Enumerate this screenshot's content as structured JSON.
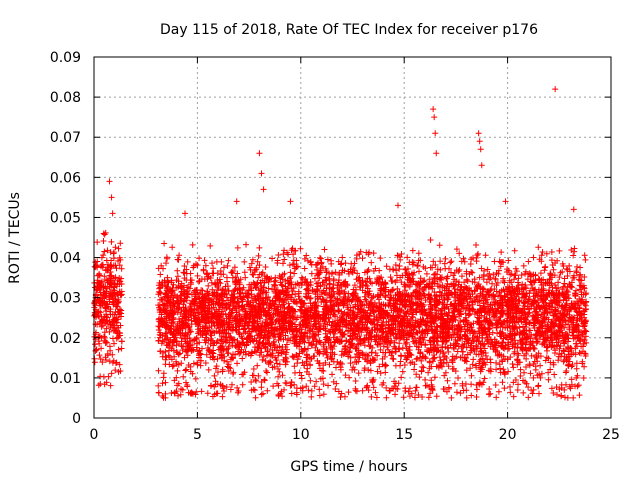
{
  "chart_data": {
    "type": "scatter",
    "title": "Day 115 of 2018, Rate Of TEC Index for receiver p176",
    "xlabel": "GPS time / hours",
    "ylabel": "ROTI / TECUs",
    "xlim": [
      0,
      25
    ],
    "ylim": [
      0,
      0.09
    ],
    "xticks": [
      "0",
      "5",
      "10",
      "15",
      "20",
      "25"
    ],
    "yticks": [
      "0",
      "0.01",
      "0.02",
      "0.03",
      "0.04",
      "0.05",
      "0.06",
      "0.07",
      "0.08",
      "0.09"
    ],
    "grid": true,
    "marker": "+",
    "color": "#ff0000",
    "data_segments": [
      {
        "x_start": 0.0,
        "x_end": 1.35,
        "y_base": 0.008,
        "y_typical_max": 0.045
      },
      {
        "x_start": 3.1,
        "x_end": 23.8,
        "y_base": 0.005,
        "y_typical_max": 0.04
      }
    ],
    "notable_points": [
      {
        "x": 0.75,
        "y": 0.059
      },
      {
        "x": 0.85,
        "y": 0.055
      },
      {
        "x": 0.9,
        "y": 0.051
      },
      {
        "x": 4.4,
        "y": 0.051
      },
      {
        "x": 6.9,
        "y": 0.054
      },
      {
        "x": 8.0,
        "y": 0.066
      },
      {
        "x": 8.1,
        "y": 0.061
      },
      {
        "x": 8.2,
        "y": 0.057
      },
      {
        "x": 9.5,
        "y": 0.054
      },
      {
        "x": 14.7,
        "y": 0.053
      },
      {
        "x": 16.4,
        "y": 0.077
      },
      {
        "x": 16.45,
        "y": 0.075
      },
      {
        "x": 16.5,
        "y": 0.071
      },
      {
        "x": 16.55,
        "y": 0.066
      },
      {
        "x": 18.6,
        "y": 0.071
      },
      {
        "x": 18.65,
        "y": 0.069
      },
      {
        "x": 18.7,
        "y": 0.067
      },
      {
        "x": 18.75,
        "y": 0.063
      },
      {
        "x": 19.9,
        "y": 0.054
      },
      {
        "x": 22.3,
        "y": 0.082
      },
      {
        "x": 23.2,
        "y": 0.052
      }
    ]
  }
}
